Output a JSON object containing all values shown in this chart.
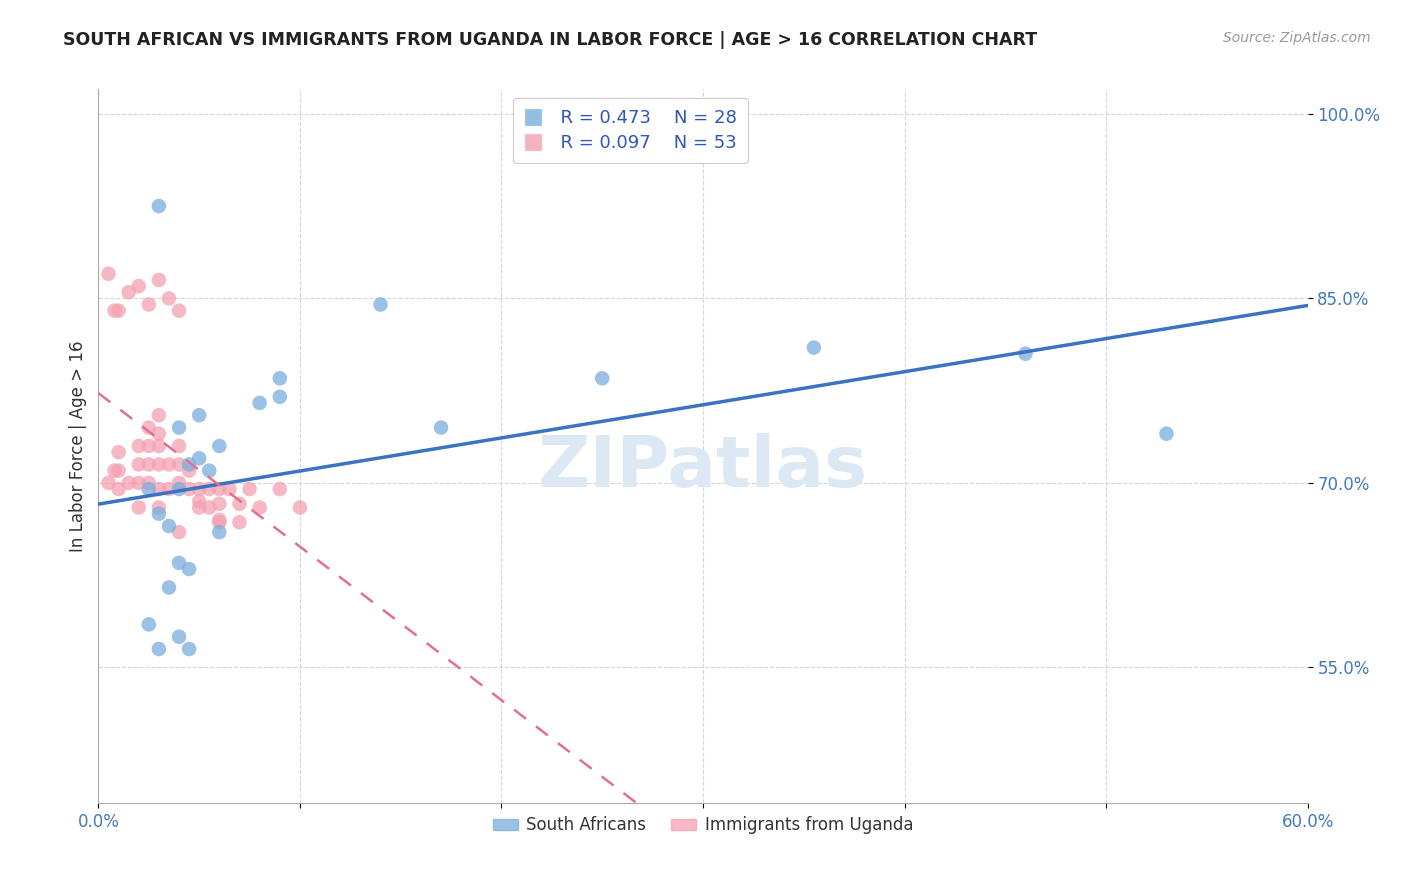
{
  "title": "SOUTH AFRICAN VS IMMIGRANTS FROM UGANDA IN LABOR FORCE | AGE > 16 CORRELATION CHART",
  "source": "Source: ZipAtlas.com",
  "ylabel": "In Labor Force | Age > 16",
  "xlim": [
    0.0,
    0.6
  ],
  "ylim": [
    0.44,
    1.02
  ],
  "xticks": [
    0.0,
    0.1,
    0.2,
    0.3,
    0.4,
    0.5,
    0.6
  ],
  "xticklabels": [
    "0.0%",
    "",
    "",
    "",
    "",
    "",
    "60.0%"
  ],
  "yticks": [
    0.55,
    0.7,
    0.85,
    1.0
  ],
  "yticklabels": [
    "55.0%",
    "70.0%",
    "85.0%",
    "100.0%"
  ],
  "grid_color": "#cccccc",
  "background_color": "#ffffff",
  "legend_R1": "R = 0.473",
  "legend_N1": "N = 28",
  "legend_R2": "R = 0.097",
  "legend_N2": "N = 53",
  "blue_color": "#7aaddb",
  "pink_color": "#f4a0b0",
  "line_blue": "#3a72c4",
  "line_pink": "#e07090",
  "watermark_color": "#dde8f5",
  "south_african_x": [
    0.025,
    0.03,
    0.035,
    0.04,
    0.045,
    0.05,
    0.055,
    0.06,
    0.03,
    0.04,
    0.045,
    0.025,
    0.035,
    0.14,
    0.25,
    0.355,
    0.03,
    0.09,
    0.46,
    0.53,
    0.17,
    0.08,
    0.05,
    0.09,
    0.04,
    0.04,
    0.045,
    0.06
  ],
  "south_african_y": [
    0.695,
    0.675,
    0.665,
    0.695,
    0.715,
    0.72,
    0.71,
    0.73,
    0.565,
    0.575,
    0.565,
    0.585,
    0.615,
    0.845,
    0.785,
    0.81,
    0.925,
    0.785,
    0.805,
    0.74,
    0.745,
    0.765,
    0.755,
    0.77,
    0.745,
    0.635,
    0.63,
    0.66
  ],
  "uganda_x": [
    0.005,
    0.008,
    0.01,
    0.01,
    0.01,
    0.015,
    0.02,
    0.02,
    0.02,
    0.025,
    0.025,
    0.025,
    0.025,
    0.03,
    0.03,
    0.03,
    0.03,
    0.03,
    0.035,
    0.035,
    0.04,
    0.04,
    0.04,
    0.04,
    0.045,
    0.045,
    0.05,
    0.05,
    0.055,
    0.055,
    0.06,
    0.06,
    0.065,
    0.07,
    0.075,
    0.08,
    0.09,
    0.1,
    0.005,
    0.008,
    0.01,
    0.015,
    0.02,
    0.025,
    0.03,
    0.035,
    0.04,
    0.05,
    0.06,
    0.07,
    0.02,
    0.06,
    0.03
  ],
  "uganda_y": [
    0.7,
    0.71,
    0.695,
    0.71,
    0.725,
    0.7,
    0.7,
    0.715,
    0.73,
    0.7,
    0.715,
    0.73,
    0.745,
    0.695,
    0.715,
    0.73,
    0.74,
    0.755,
    0.695,
    0.715,
    0.7,
    0.715,
    0.73,
    0.66,
    0.695,
    0.71,
    0.695,
    0.685,
    0.695,
    0.68,
    0.695,
    0.683,
    0.695,
    0.683,
    0.695,
    0.68,
    0.695,
    0.68,
    0.87,
    0.84,
    0.84,
    0.855,
    0.86,
    0.845,
    0.865,
    0.85,
    0.84,
    0.68,
    0.668,
    0.668,
    0.68,
    0.67,
    0.68
  ]
}
